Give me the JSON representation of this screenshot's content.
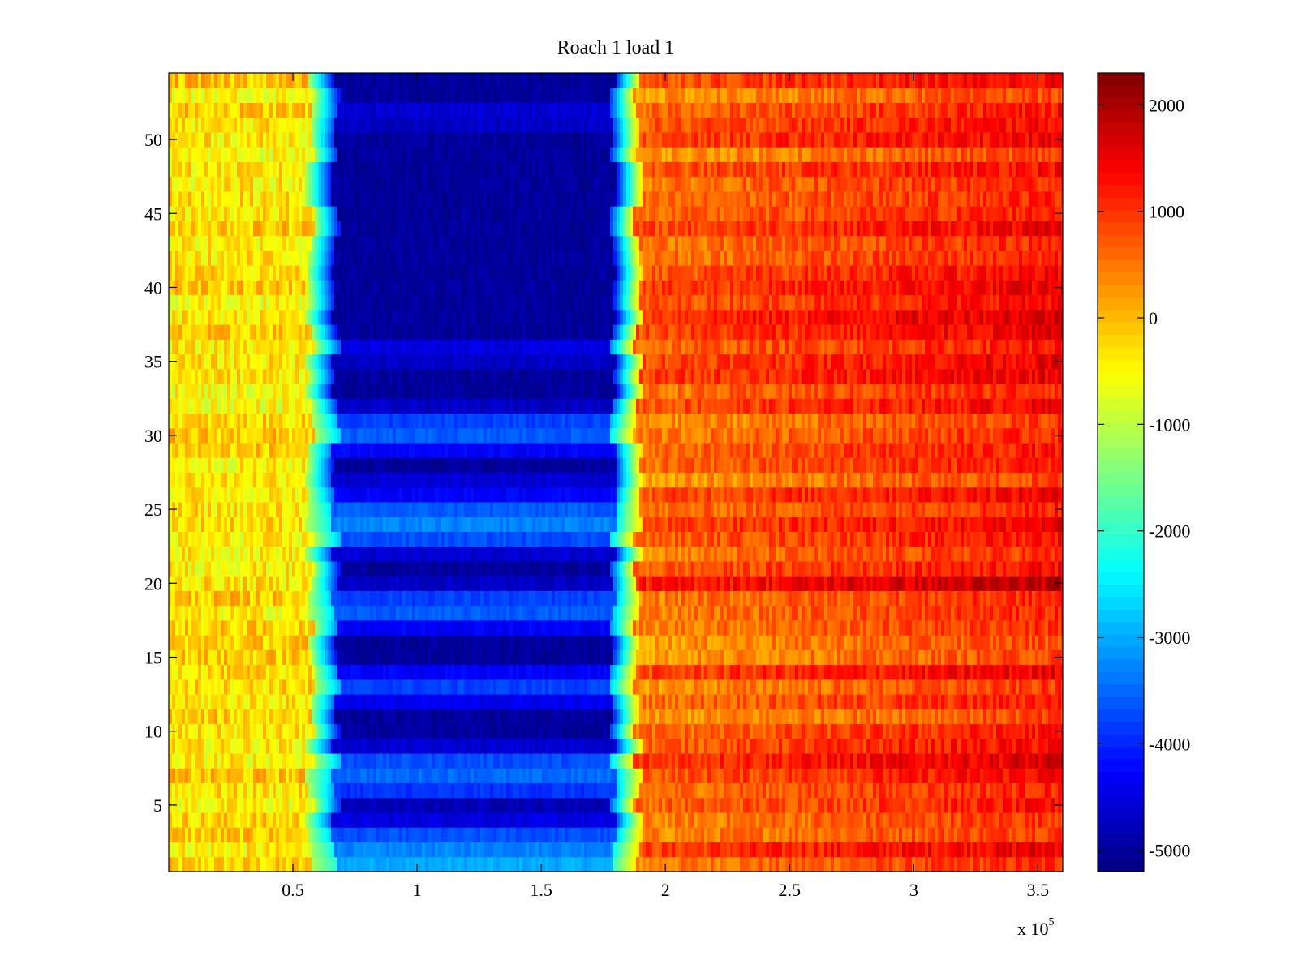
{
  "chart_data": {
    "type": "heatmap",
    "title": "Roach 1 load 1",
    "xlabel": "",
    "ylabel": "",
    "x_multiplier": {
      "prefix": "x 10",
      "exponent": "5"
    },
    "xlim": [
      0,
      360000
    ],
    "ylim": [
      0.5,
      54.5
    ],
    "x_ticks": [
      0.5,
      1,
      1.5,
      2,
      2.5,
      3,
      3.5
    ],
    "x_tick_labels": [
      "0.5",
      "1",
      "1.5",
      "2",
      "2.5",
      "3",
      "3.5"
    ],
    "y_ticks": [
      5,
      10,
      15,
      20,
      25,
      30,
      35,
      40,
      45,
      50
    ],
    "y_tick_labels": [
      "5",
      "10",
      "15",
      "20",
      "25",
      "30",
      "35",
      "40",
      "45",
      "50"
    ],
    "rows": 54,
    "colormap": "jet",
    "clim": [
      -5200,
      2300
    ],
    "colorbar_ticks": [
      2000,
      1000,
      0,
      -1000,
      -2000,
      -3000,
      -4000,
      -5000
    ],
    "colorbar_tick_labels": [
      "2000",
      "1000",
      "0",
      "-1000",
      "-2000",
      "-3000",
      "-4000",
      "-5000"
    ],
    "region_boundaries_x": [
      63000,
      183000
    ],
    "left_region_value": -300,
    "right_region_value": 400,
    "right_region_max_value": 1400,
    "row_values_center": [
      -3000,
      -3300,
      -3700,
      -4500,
      -4800,
      -3900,
      -3500,
      -3700,
      -4600,
      -5000,
      -5000,
      -4400,
      -3800,
      -4300,
      -5000,
      -5000,
      -4300,
      -3600,
      -3800,
      -4700,
      -5000,
      -4600,
      -3700,
      -3300,
      -3600,
      -4300,
      -4600,
      -5000,
      -4300,
      -3600,
      -3800,
      -4700,
      -5000,
      -5000,
      -4700,
      -4500,
      -5000,
      -5000,
      -5000,
      -5000,
      -5000,
      -5000,
      -5000,
      -5000,
      -5000,
      -5000,
      -5000,
      -5000,
      -5000,
      -5000,
      -4700,
      -4600,
      -5000,
      -5000
    ]
  }
}
